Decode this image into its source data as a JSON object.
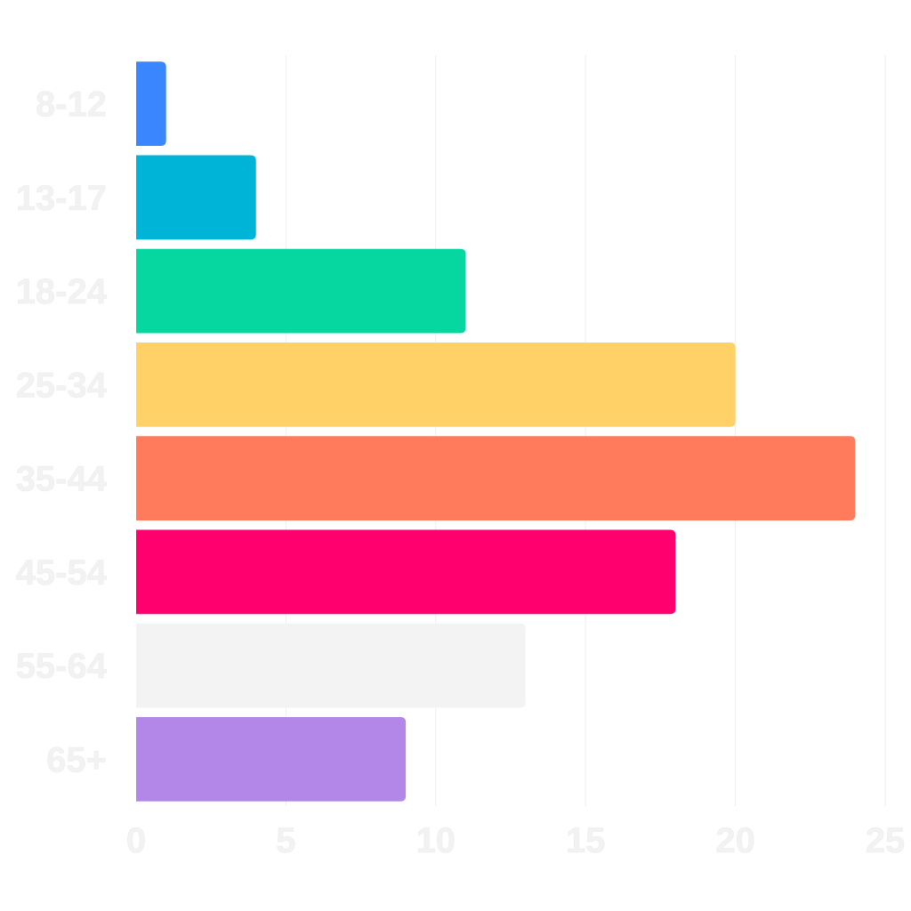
{
  "chart_data": {
    "type": "bar",
    "orientation": "horizontal",
    "categories": [
      "8-12",
      "13-17",
      "18-24",
      "25-34",
      "35-44",
      "45-54",
      "55-64",
      "65+"
    ],
    "values": [
      1,
      4,
      11,
      20,
      24,
      18,
      13,
      9
    ],
    "colors": [
      "#3a86ff",
      "#00b4d8",
      "#06d6a0",
      "#ffd166",
      "#ff7b5c",
      "#ff006e",
      "#f4f3f3",
      "#b287e8"
    ],
    "title": "",
    "xlabel": "",
    "ylabel": "",
    "xlim": [
      0,
      25
    ],
    "xticks": [
      "0",
      "5",
      "10",
      "15",
      "20",
      "25"
    ],
    "grid": "vertical",
    "legend": "none"
  }
}
